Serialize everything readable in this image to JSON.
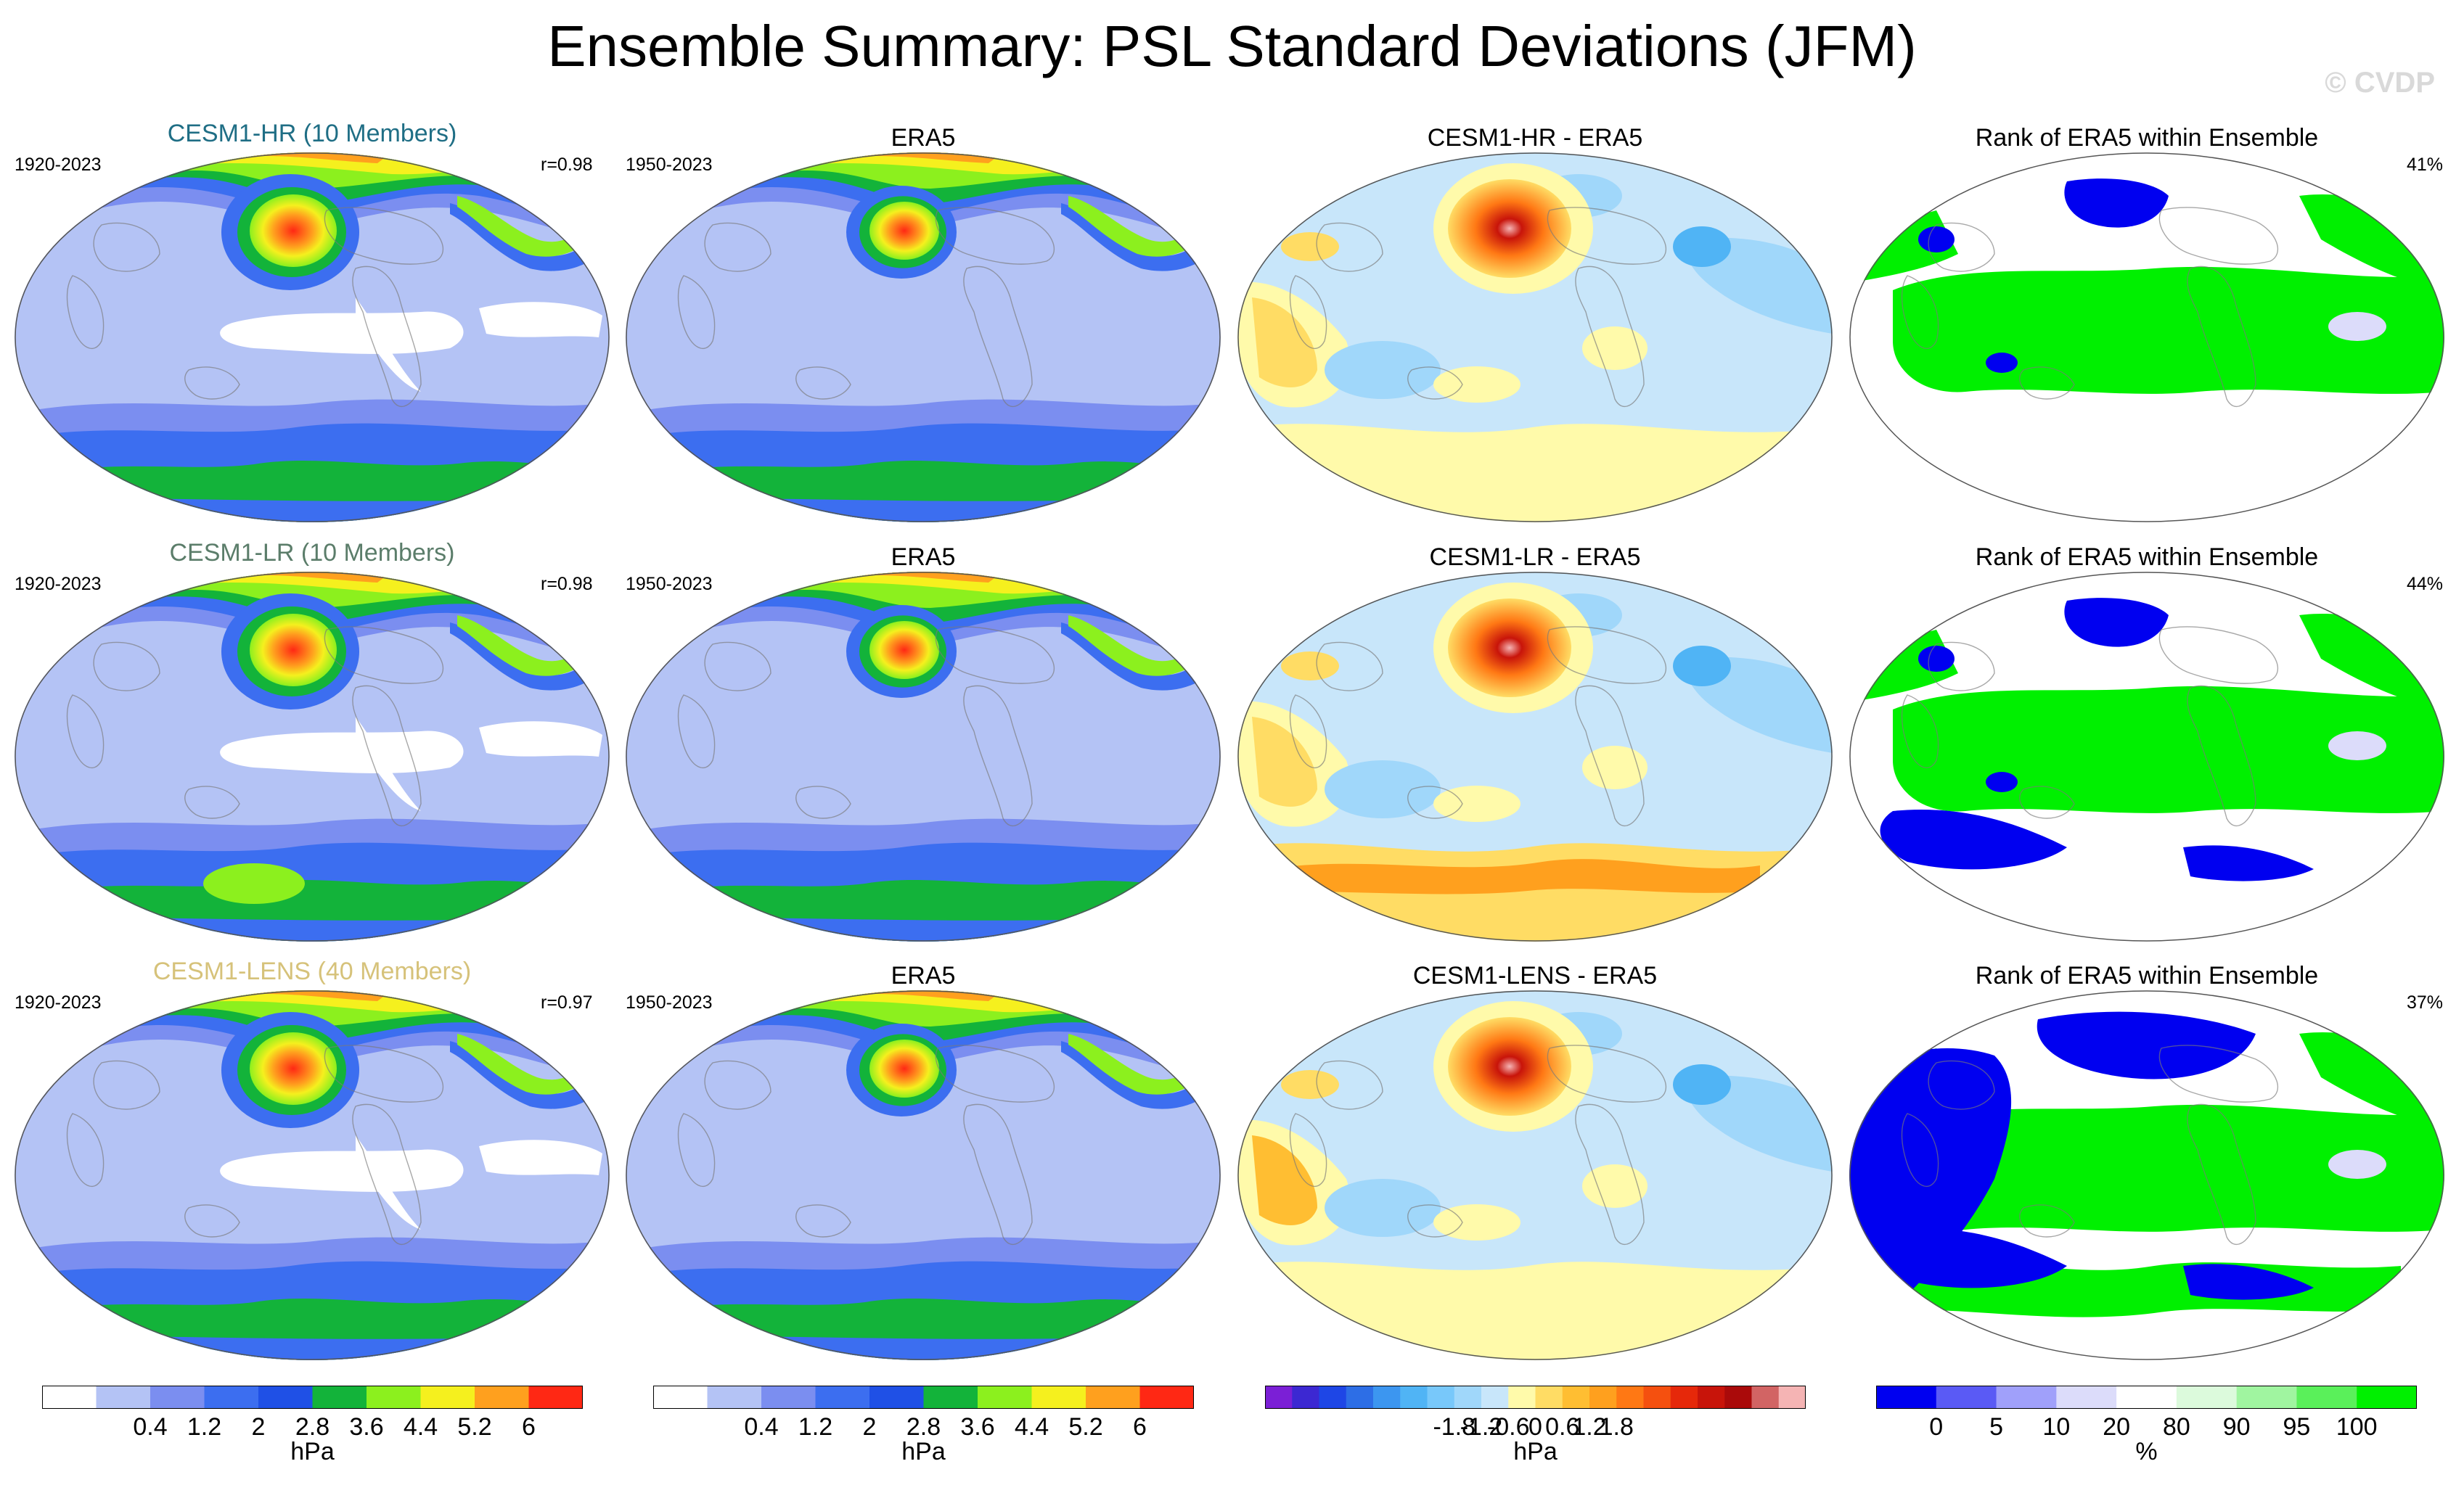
{
  "title": "Ensemble Summary: PSL Standard Deviations (JFM)",
  "watermark": "© CVDP",
  "rows": [
    {
      "model_title": "CESM1-HR (10 Members)",
      "model_color": "#1f6e85",
      "model_years": "1920-2023",
      "pattern_corr": "r=0.98",
      "obs_title": "ERA5",
      "obs_years": "1950-2023",
      "diff_title": "CESM1-HR - ERA5",
      "rank_title": "Rank of ERA5 within Ensemble",
      "rank_pct": "41%"
    },
    {
      "model_title": "CESM1-LR (10 Members)",
      "model_color": "#5b7d6a",
      "model_years": "1920-2023",
      "pattern_corr": "r=0.98",
      "obs_title": "ERA5",
      "obs_years": "1950-2023",
      "diff_title": "CESM1-LR - ERA5",
      "rank_title": "Rank of ERA5 within Ensemble",
      "rank_pct": "44%"
    },
    {
      "model_title": "CESM1-LENS (40 Members)",
      "model_color": "#d6c27a",
      "model_years": "1920-2023",
      "pattern_corr": "r=0.97",
      "obs_title": "ERA5",
      "obs_years": "1950-2023",
      "diff_title": "CESM1-LENS - ERA5",
      "rank_title": "Rank of ERA5 within Ensemble",
      "rank_pct": "37%"
    }
  ],
  "colorbars": [
    {
      "unit": "hPa",
      "ticks": [
        "0.4",
        "1.2",
        "2",
        "2.8",
        "3.6",
        "4.4",
        "5.2",
        "6"
      ],
      "colors": [
        "#ffffff",
        "#b4c3f5",
        "#7b8ef0",
        "#3c6ef0",
        "#1f50e6",
        "#13b33a",
        "#8cf01e",
        "#f5f01e",
        "#ffa01e",
        "#ff2814"
      ]
    },
    {
      "unit": "hPa",
      "ticks": [
        "0.4",
        "1.2",
        "2",
        "2.8",
        "3.6",
        "4.4",
        "5.2",
        "6"
      ],
      "colors": [
        "#ffffff",
        "#b4c3f5",
        "#7b8ef0",
        "#3c6ef0",
        "#1f50e6",
        "#13b33a",
        "#8cf01e",
        "#f5f01e",
        "#ffa01e",
        "#ff2814"
      ]
    },
    {
      "unit": "hPa",
      "ticks": [
        "-1.8",
        "-1.2",
        "-0.6",
        "0",
        "0.6",
        "1.2",
        "1.8"
      ],
      "colors": [
        "#7b1fd6",
        "#3c28d2",
        "#1e46e6",
        "#2d6ee6",
        "#3c96f0",
        "#50b4f5",
        "#78c8fa",
        "#a0d7fa",
        "#c8e6fa",
        "#fffaaa",
        "#ffdc64",
        "#ffbe32",
        "#ffa01e",
        "#ff7814",
        "#f5500f",
        "#e6280a",
        "#c8140a",
        "#aa0a0a",
        "#d26464",
        "#f5b4b4"
      ]
    },
    {
      "unit": "%",
      "ticks": [
        "0",
        "5",
        "10",
        "20",
        "80",
        "90",
        "95",
        "100"
      ],
      "colors": [
        "#0000f0",
        "#5a5af5",
        "#a0a0fa",
        "#dcdcfa",
        "#ffffff",
        "#dcfadc",
        "#a0f5a0",
        "#5af05a",
        "#00f000"
      ]
    }
  ]
}
